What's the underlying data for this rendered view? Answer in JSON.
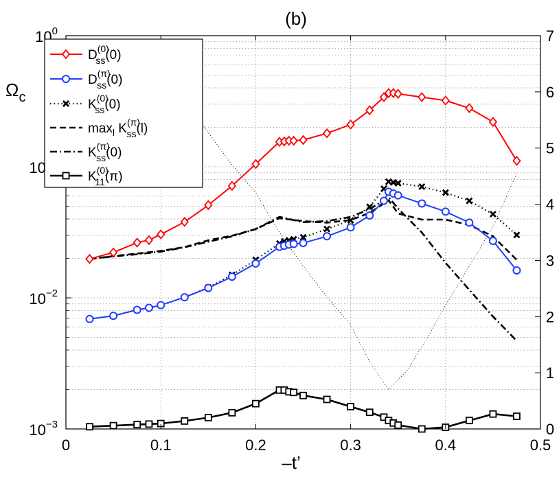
{
  "chart_data": {
    "type": "line",
    "title": "(b)",
    "xlabel": "–t’",
    "ylabel": "Ωc",
    "xlim": [
      0,
      0.5
    ],
    "ylim": [
      0.001,
      1
    ],
    "yscale": "log",
    "y2lim": [
      0,
      7
    ],
    "grid": true,
    "x_ticks": [
      "0",
      "0.1",
      "0.2",
      "0.3",
      "0.4",
      "0.5"
    ],
    "y_ticks_left": [
      "10−3",
      "10−2",
      "10−1",
      "100"
    ],
    "y_ticks_right": [
      "0",
      "1",
      "2",
      "3",
      "4",
      "5",
      "6",
      "7"
    ],
    "legend_position": "top-left",
    "legend": [
      {
        "name": "D",
        "sup": "(0)",
        "sub": "ss",
        "arg": "(0)",
        "color": "#ff0000"
      },
      {
        "name": "D",
        "sup": "(π)",
        "sub": "ss",
        "arg": "(0)",
        "color": "#1f3fff"
      },
      {
        "name": "K",
        "sup": "(0)",
        "sub": "ss",
        "arg": "(0)",
        "color": "#000000"
      },
      {
        "name": "maxl K",
        "sup": "(π)",
        "sub": "ss",
        "arg": "(l)",
        "color": "#000000"
      },
      {
        "name": "K",
        "sup": "(π)",
        "sub": "ss",
        "arg": "(0)",
        "color": "#000000"
      },
      {
        "name": "K",
        "sup": "(0)",
        "sub": "11",
        "arg": "(π)",
        "color": "#000000"
      }
    ],
    "series": [
      {
        "name": "D_ss^(0)(0)",
        "axis": "left",
        "color": "#ff0000",
        "marker": "diamond",
        "line": "solid",
        "x": [
          0.025,
          0.05,
          0.075,
          0.0875,
          0.1,
          0.125,
          0.15,
          0.175,
          0.2,
          0.225,
          0.23,
          0.235,
          0.24,
          0.25,
          0.275,
          0.3,
          0.32,
          0.335,
          0.34,
          0.345,
          0.35,
          0.375,
          0.4,
          0.425,
          0.45,
          0.475
        ],
        "y": [
          0.0198,
          0.0222,
          0.0264,
          0.0276,
          0.0305,
          0.038,
          0.051,
          0.0715,
          0.105,
          0.155,
          0.156,
          0.158,
          0.158,
          0.16,
          0.18,
          0.21,
          0.27,
          0.34,
          0.365,
          0.365,
          0.36,
          0.34,
          0.32,
          0.28,
          0.22,
          0.111
        ]
      },
      {
        "name": "D_ss^(pi)(0)",
        "axis": "left",
        "color": "#1f3fff",
        "marker": "circle",
        "line": "solid",
        "x": [
          0.025,
          0.05,
          0.075,
          0.0875,
          0.1,
          0.125,
          0.15,
          0.175,
          0.2,
          0.225,
          0.23,
          0.235,
          0.24,
          0.25,
          0.275,
          0.3,
          0.32,
          0.335,
          0.34,
          0.345,
          0.35,
          0.375,
          0.4,
          0.425,
          0.45,
          0.475
        ],
        "y": [
          0.0069,
          0.0073,
          0.0081,
          0.0084,
          0.0088,
          0.0101,
          0.0119,
          0.0145,
          0.0183,
          0.0245,
          0.025,
          0.0255,
          0.0258,
          0.0262,
          0.0295,
          0.0345,
          0.0425,
          0.055,
          0.0645,
          0.0625,
          0.0605,
          0.0525,
          0.0455,
          0.0375,
          0.0272,
          0.0162
        ]
      },
      {
        "name": "K_ss^(0)(0)",
        "axis": "left",
        "color": "#000000",
        "marker": "x",
        "line": "dotted",
        "x": [
          0.025,
          0.05,
          0.075,
          0.0875,
          0.1,
          0.125,
          0.15,
          0.175,
          0.2,
          0.225,
          0.23,
          0.235,
          0.24,
          0.25,
          0.275,
          0.3,
          0.32,
          0.335,
          0.34,
          0.345,
          0.35,
          0.375,
          0.4,
          0.425,
          0.45,
          0.475
        ],
        "y": [
          0.0069,
          0.0073,
          0.0081,
          0.0084,
          0.0088,
          0.0101,
          0.012,
          0.015,
          0.0195,
          0.026,
          0.027,
          0.0275,
          0.028,
          0.029,
          0.0335,
          0.039,
          0.0495,
          0.068,
          0.077,
          0.076,
          0.075,
          0.0705,
          0.0635,
          0.055,
          0.0435,
          0.0302
        ]
      },
      {
        "name": "max_l K_ss^(pi)(l)",
        "axis": "left",
        "color": "#000000",
        "marker": "none",
        "line": "dashed",
        "x": [
          0.025,
          0.05,
          0.075,
          0.1,
          0.125,
          0.15,
          0.175,
          0.2,
          0.225,
          0.25,
          0.275,
          0.3,
          0.32,
          0.34,
          0.35,
          0.375,
          0.4,
          0.425,
          0.45,
          0.475
        ],
        "y": [
          0.0198,
          0.0208,
          0.0218,
          0.0228,
          0.0244,
          0.0275,
          0.0298,
          0.0335,
          0.0405,
          0.0385,
          0.0375,
          0.0392,
          0.0445,
          0.0555,
          0.044,
          0.0395,
          0.0395,
          0.036,
          0.0295,
          0.0195
        ]
      },
      {
        "name": "K_ss^(pi)(0)",
        "axis": "left",
        "color": "#000000",
        "marker": "none",
        "line": "dashdot",
        "x": [
          0.025,
          0.05,
          0.075,
          0.1,
          0.125,
          0.15,
          0.175,
          0.2,
          0.225,
          0.25,
          0.275,
          0.3,
          0.32,
          0.34,
          0.35,
          0.375,
          0.4,
          0.425,
          0.45,
          0.475
        ],
        "y": [
          0.0198,
          0.0207,
          0.0215,
          0.0225,
          0.0243,
          0.0268,
          0.0295,
          0.0335,
          0.0415,
          0.0378,
          0.0385,
          0.0415,
          0.0475,
          0.0585,
          0.048,
          0.0315,
          0.0185,
          0.0115,
          0.0072,
          0.0047
        ]
      },
      {
        "name": "K_11^(0)(pi)",
        "axis": "left",
        "color": "#000000",
        "marker": "square",
        "line": "solid-thick",
        "x": [
          0.025,
          0.05,
          0.075,
          0.0875,
          0.1,
          0.125,
          0.15,
          0.175,
          0.2,
          0.225,
          0.23,
          0.235,
          0.24,
          0.25,
          0.275,
          0.3,
          0.32,
          0.335,
          0.34,
          0.345,
          0.35,
          0.375,
          0.4,
          0.425,
          0.45,
          0.475
        ],
        "y": [
          0.00104,
          0.00106,
          0.00108,
          0.00109,
          0.0011,
          0.00115,
          0.00122,
          0.00133,
          0.00156,
          0.00198,
          0.00198,
          0.00192,
          0.0019,
          0.0018,
          0.00168,
          0.00148,
          0.00134,
          0.00123,
          0.00116,
          0.00111,
          0.00107,
          0.001,
          0.00103,
          0.00116,
          0.0013,
          0.00125
        ]
      },
      {
        "name": "thin dotted (right axis)",
        "axis": "right",
        "color": "#000000",
        "marker": "none",
        "line": "thin-dotted",
        "x": [
          0.14,
          0.175,
          0.2,
          0.225,
          0.25,
          0.275,
          0.3,
          0.32,
          0.34,
          0.36,
          0.38,
          0.4,
          0.425,
          0.45,
          0.475
        ],
        "y": [
          5.5,
          4.7,
          4.2,
          3.5,
          2.9,
          2.35,
          1.85,
          1.2,
          0.7,
          1.05,
          1.6,
          2.2,
          2.9,
          3.6,
          4.55
        ]
      }
    ]
  }
}
